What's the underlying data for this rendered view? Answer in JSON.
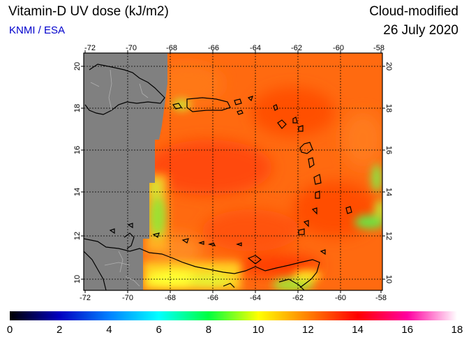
{
  "header": {
    "title": "Vitamin-D UV dose (kJ/m2)",
    "source": "KNMI / ESA",
    "mode": "Cloud-modified",
    "date": "26 July 2020"
  },
  "map": {
    "lon_range": [
      -72,
      -58
    ],
    "lat_range": [
      9.5,
      20.5
    ],
    "lon_ticks": [
      "-72",
      "-70",
      "-68",
      "-66",
      "-64",
      "-62",
      "-60",
      "-58"
    ],
    "lat_ticks": [
      "10",
      "12",
      "14",
      "16",
      "18",
      "20"
    ],
    "no_data_color": "#808080",
    "coastline_color": "#000000"
  },
  "colorbar": {
    "ticks": [
      "0",
      "2",
      "4",
      "6",
      "8",
      "10",
      "12",
      "14",
      "16",
      "18"
    ],
    "stops": [
      "#000000",
      "#0000c0",
      "#0080ff",
      "#00ffff",
      "#00ff40",
      "#ffff00",
      "#ff8000",
      "#ff0000",
      "#ff00a0",
      "#ffffff"
    ]
  }
}
